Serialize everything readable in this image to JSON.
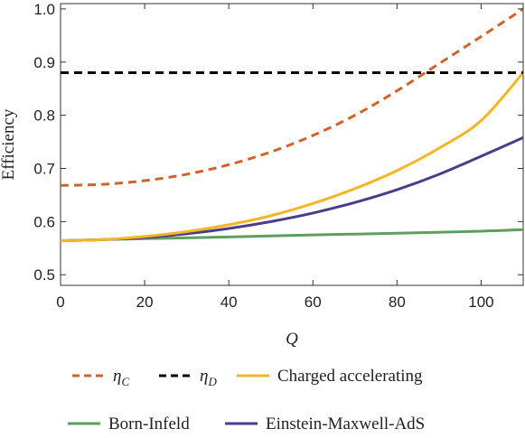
{
  "chart_data": {
    "type": "line",
    "xlabel": "Q",
    "ylabel": "Efficiency",
    "xlim": [
      0,
      110
    ],
    "ylim": [
      0.48,
      1.01
    ],
    "xticks": [
      0,
      20,
      40,
      60,
      80,
      100
    ],
    "yticks": [
      0.5,
      0.6,
      0.7,
      0.8,
      0.9,
      1.0
    ],
    "ytick_labels": [
      "0.5",
      "0.6",
      "0.7",
      "0.8",
      "0.9",
      "1.0"
    ],
    "legend_position": "bottom",
    "series": [
      {
        "name": "η_C",
        "legend_main": "η",
        "legend_sub": "C",
        "color": "#d0622a",
        "dash": "dashed",
        "x": [
          0,
          10,
          20,
          30,
          40,
          50,
          60,
          70,
          80,
          90,
          100,
          110
        ],
        "y": [
          0.668,
          0.67,
          0.677,
          0.689,
          0.707,
          0.731,
          0.762,
          0.8,
          0.846,
          0.897,
          0.948,
          1.0
        ]
      },
      {
        "name": "η_D",
        "legend_main": "η",
        "legend_sub": "D",
        "color": "#000000",
        "dash": "dashed",
        "x": [
          0,
          110
        ],
        "y": [
          0.88,
          0.88
        ]
      },
      {
        "name": "Charged accelerating",
        "color": "#f4b526",
        "dash": "solid",
        "x": [
          0,
          10,
          20,
          30,
          40,
          50,
          60,
          70,
          80,
          90,
          100,
          110
        ],
        "y": [
          0.564,
          0.566,
          0.572,
          0.581,
          0.594,
          0.611,
          0.634,
          0.662,
          0.696,
          0.738,
          0.79,
          0.88
        ]
      },
      {
        "name": "Born-Infeld",
        "color": "#5f9e5f",
        "dash": "solid",
        "x": [
          0,
          20,
          40,
          60,
          80,
          100,
          110
        ],
        "y": [
          0.564,
          0.568,
          0.571,
          0.575,
          0.578,
          0.582,
          0.585
        ]
      },
      {
        "name": "Einstein-Maxwell-AdS",
        "color": "#4b3d8a",
        "dash": "solid",
        "x": [
          0,
          10,
          20,
          30,
          40,
          50,
          60,
          70,
          80,
          90,
          100,
          110
        ],
        "y": [
          0.564,
          0.566,
          0.57,
          0.577,
          0.587,
          0.6,
          0.616,
          0.636,
          0.66,
          0.689,
          0.723,
          0.758
        ]
      }
    ]
  }
}
